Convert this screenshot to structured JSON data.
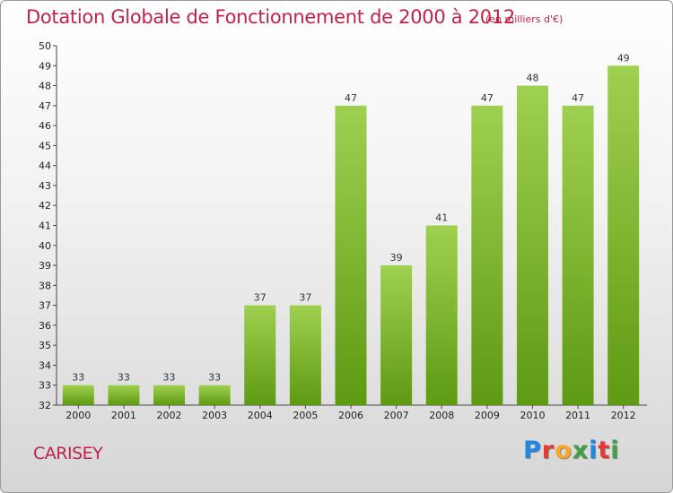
{
  "header": {
    "title": "Dotation Globale de Fonctionnement de 2000 à 2012",
    "unit": "(en milliers d'€)"
  },
  "footer": {
    "commune": "CARISEY",
    "logo_text": "Proxiti"
  },
  "colors": {
    "title": "#c0234a",
    "bar_light": "#9fd050",
    "bar_dark": "#5e9a12",
    "logo": [
      "#1e88e5",
      "#e53935",
      "#f9a825",
      "#43a047",
      "#1e88e5",
      "#e53935",
      "#43a047"
    ]
  },
  "chart_data": {
    "type": "bar",
    "title": "Dotation Globale de Fonctionnement de 2000 à 2012",
    "subtitle": "(en milliers d'€)",
    "xlabel": "",
    "ylabel": "",
    "categories": [
      "2000",
      "2001",
      "2002",
      "2003",
      "2004",
      "2005",
      "2006",
      "2007",
      "2008",
      "2009",
      "2010",
      "2011",
      "2012"
    ],
    "values": [
      33,
      33,
      33,
      33,
      37,
      37,
      47,
      39,
      41,
      47,
      48,
      47,
      49
    ],
    "ylim": [
      32,
      50
    ],
    "yticks": [
      32,
      33,
      34,
      35,
      36,
      37,
      38,
      39,
      40,
      41,
      42,
      43,
      44,
      45,
      46,
      47,
      48,
      49,
      50
    ],
    "grid": false,
    "data_labels": true
  }
}
